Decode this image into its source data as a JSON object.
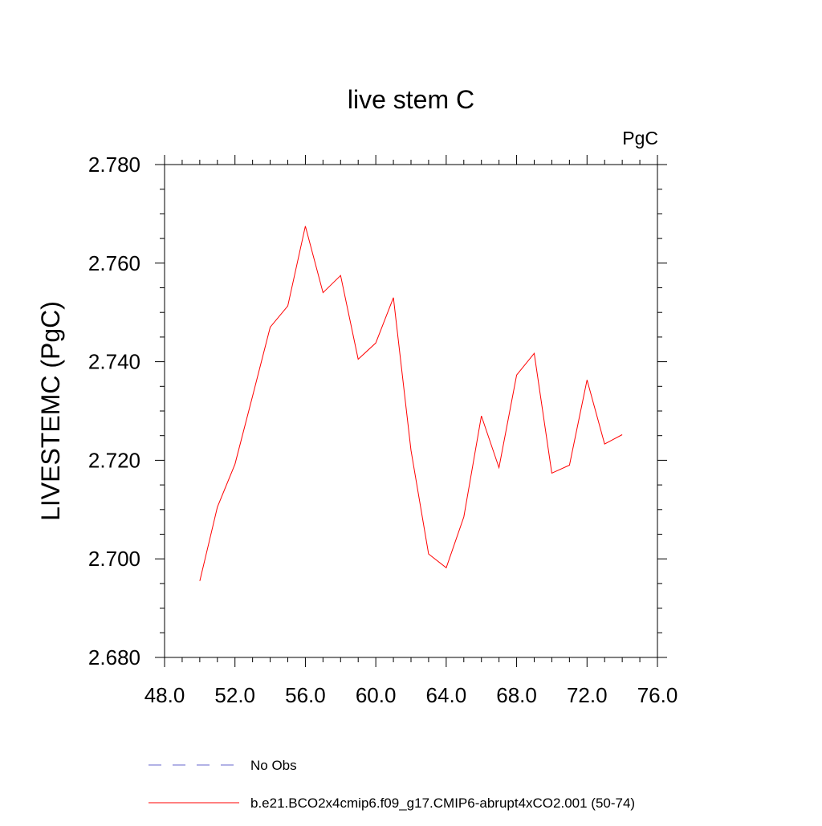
{
  "chart_data": {
    "type": "line",
    "title": "live stem C",
    "units_label": "PgC",
    "ylabel": "LIVESTEMC  (PgC)",
    "xlabel": "",
    "xlim": [
      48,
      76
    ],
    "ylim": [
      2.68,
      2.78
    ],
    "x_ticks": [
      48,
      52,
      56,
      60,
      64,
      68,
      72,
      76
    ],
    "x_tick_labels": [
      "48.0",
      "52.0",
      "56.0",
      "60.0",
      "64.0",
      "68.0",
      "72.0",
      "76.0"
    ],
    "y_ticks": [
      2.68,
      2.7,
      2.72,
      2.74,
      2.76,
      2.78
    ],
    "y_tick_labels": [
      "2.680",
      "2.700",
      "2.720",
      "2.740",
      "2.760",
      "2.780"
    ],
    "grid": false,
    "legend_position": "bottom",
    "legend": [
      {
        "label": "No Obs",
        "color": "#6666cc",
        "style": "dashed"
      },
      {
        "label": "b.e21.BCO2x4cmip6.f09_g17.CMIP6-abrupt4xCO2.001 (50-74)",
        "color": "#ff0000",
        "style": "solid"
      }
    ],
    "series": [
      {
        "name": "b.e21.BCO2x4cmip6.f09_g17.CMIP6-abrupt4xCO2.001 (50-74)",
        "color": "#ff0000",
        "x": [
          50,
          51,
          52,
          53,
          54,
          55,
          56,
          57,
          58,
          59,
          60,
          61,
          62,
          63,
          64,
          65,
          66,
          67,
          68,
          69,
          70,
          71,
          72,
          73,
          74
        ],
        "y": [
          2.6955,
          2.7105,
          2.7192,
          2.733,
          2.747,
          2.7513,
          2.7675,
          2.754,
          2.7575,
          2.7405,
          2.7438,
          2.753,
          2.722,
          2.701,
          2.6982,
          2.7085,
          2.729,
          2.7185,
          2.7373,
          2.7417,
          2.7174,
          2.719,
          2.7363,
          2.7233,
          2.7252
        ]
      }
    ]
  }
}
